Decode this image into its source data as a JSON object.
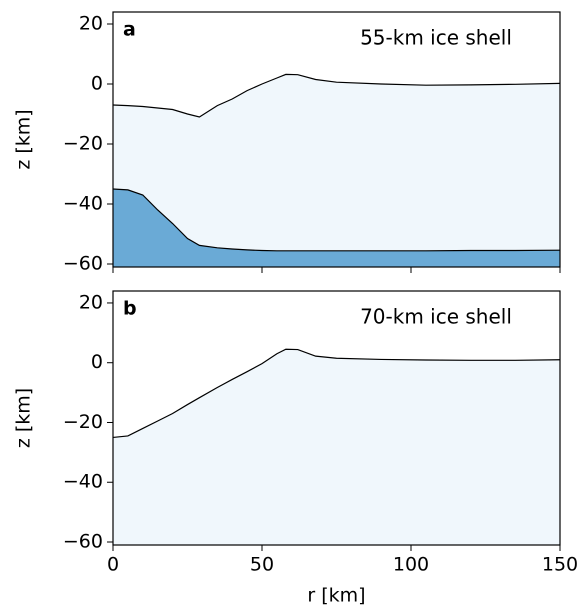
{
  "chart_data": [
    {
      "type": "area",
      "panel_label": "a",
      "annotation": "55-km ice shell",
      "ylabel": "z [km]",
      "show_xtick_labels": false,
      "x": [
        0,
        5,
        10,
        15,
        20,
        25,
        29,
        35,
        40,
        45,
        50,
        55,
        58,
        62,
        68,
        75,
        90,
        105,
        120,
        135,
        150
      ],
      "series": [
        {
          "color": "#f0f7fc",
          "values": [
            -7,
            -7.2,
            -7.5,
            -8,
            -8.5,
            -10,
            -11,
            -7.2,
            -5,
            -2.2,
            0,
            2,
            3.2,
            3.1,
            1.5,
            0.6,
            0,
            -0.4,
            -0.3,
            -0.1,
            0.2
          ]
        },
        {
          "color": "#6aaad6",
          "values": [
            -35,
            -35.3,
            -37,
            -42,
            -46.5,
            -51.5,
            -53.8,
            -54.6,
            -55,
            -55.3,
            -55.5,
            -55.6,
            -55.6,
            -55.6,
            -55.6,
            -55.6,
            -55.6,
            -55.6,
            -55.5,
            -55.5,
            -55.4
          ]
        }
      ],
      "xlim": [
        0,
        150
      ],
      "xticks": [
        0,
        50,
        100,
        150
      ],
      "ylim": [
        -61,
        24
      ],
      "yticks": [
        {
          "value": -60,
          "label": "−60"
        },
        {
          "value": -40,
          "label": "−40"
        },
        {
          "value": -20,
          "label": "−20"
        },
        0,
        20
      ]
    },
    {
      "type": "area",
      "panel_label": "b",
      "annotation": "70-km ice shell",
      "ylabel": "z [km]",
      "xlabel": "r [km]",
      "show_xtick_labels": true,
      "x": [
        0,
        5,
        10,
        15,
        20,
        25,
        29,
        35,
        40,
        45,
        50,
        55,
        58,
        62,
        68,
        75,
        90,
        105,
        120,
        135,
        150
      ],
      "series": [
        {
          "color": "#f0f7fc",
          "values": [
            -25,
            -24.5,
            -22,
            -19.5,
            -17,
            -14,
            -11.7,
            -8.3,
            -5.6,
            -3,
            -0.3,
            3,
            4.5,
            4.4,
            2.2,
            1.5,
            1.1,
            0.9,
            0.8,
            0.8,
            1
          ]
        }
      ],
      "xlim": [
        0,
        150
      ],
      "xticks": [
        0,
        50,
        100,
        150
      ],
      "ylim": [
        -61,
        24
      ],
      "yticks": [
        {
          "value": -60,
          "label": "−60"
        },
        {
          "value": -40,
          "label": "−40"
        },
        {
          "value": -20,
          "label": "−20"
        },
        0,
        20
      ]
    }
  ]
}
